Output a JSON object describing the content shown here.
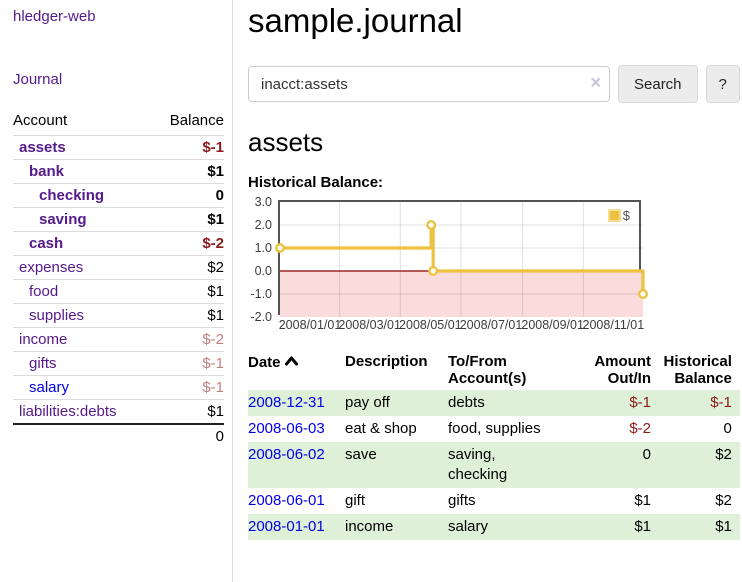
{
  "colors": {
    "link_purple": "#551a8b",
    "link_blue": "#0000e8",
    "neg_strong": "#8b1a1a",
    "neg_muted": "#bf8080",
    "row_green": "#dff0d8",
    "chart_line": "#edc240",
    "chart_marker_fill": "#ffffff",
    "chart_fill_negative": "#fbdcdc",
    "chart_zero_line": "#8b0000",
    "chart_border": "#545454"
  },
  "sidebar": {
    "app_title": "hledger-web",
    "journal_label": "Journal",
    "accounts": {
      "col_account": "Account",
      "col_balance": "Balance",
      "rows": [
        {
          "name": "assets",
          "depth": 1,
          "bold": true,
          "link": "purple",
          "balance": "$-1",
          "tone": "neg_strong"
        },
        {
          "name": "bank",
          "depth": 2,
          "bold": true,
          "link": "purple",
          "balance": "$1",
          "tone": "plain"
        },
        {
          "name": "checking",
          "depth": 3,
          "bold": true,
          "link": "purple",
          "balance": "0",
          "tone": "plain"
        },
        {
          "name": "saving",
          "depth": 3,
          "bold": true,
          "link": "purple",
          "balance": "$1",
          "tone": "plain"
        },
        {
          "name": "cash",
          "depth": 2,
          "bold": true,
          "link": "purple",
          "balance": "$-2",
          "tone": "neg_strong"
        },
        {
          "name": "expenses",
          "depth": 1,
          "bold": false,
          "link": "purple",
          "balance": "$2",
          "tone": "plain"
        },
        {
          "name": "food",
          "depth": 2,
          "bold": false,
          "link": "purple",
          "balance": "$1",
          "tone": "plain"
        },
        {
          "name": "supplies",
          "depth": 2,
          "bold": false,
          "link": "purple",
          "balance": "$1",
          "tone": "plain"
        },
        {
          "name": "income",
          "depth": 1,
          "bold": false,
          "link": "purple",
          "balance": "$-2",
          "tone": "neg_muted"
        },
        {
          "name": "gifts",
          "depth": 2,
          "bold": false,
          "link": "purple",
          "balance": "$-1",
          "tone": "neg_muted"
        },
        {
          "name": "salary",
          "depth": 2,
          "bold": false,
          "link": "blue",
          "balance": "$-1",
          "tone": "neg_muted"
        },
        {
          "name": "liabilities:debts",
          "depth": 1,
          "bold": false,
          "link": "purple",
          "balance": "$1",
          "tone": "plain"
        }
      ],
      "total": "0"
    }
  },
  "main": {
    "title": "sample.journal",
    "search": {
      "value": "inacct:assets",
      "clear_icon": "×",
      "button_label": "Search",
      "help_label": "?"
    },
    "account_heading": "assets",
    "chart_heading": "Historical Balance:"
  },
  "chart_data": {
    "type": "line",
    "step": true,
    "title": "Historical Balance",
    "x_range": [
      "2008-01-01",
      "2008-12-31"
    ],
    "ylim": [
      -2,
      3
    ],
    "grid": true,
    "legend_position": "top-right",
    "legend_label": "$",
    "y_ticks": [
      "3.0",
      "2.0",
      "1.0",
      "0.0",
      "-1.0",
      "-2.0"
    ],
    "x_ticks": [
      {
        "date": "2008-01-01",
        "label": "2008/01/01"
      },
      {
        "date": "2008-03-01",
        "label": "2008/03/01"
      },
      {
        "date": "2008-05-01",
        "label": "2008/05/01"
      },
      {
        "date": "2008-07-01",
        "label": "2008/07/01"
      },
      {
        "date": "2008-09-01",
        "label": "2008/09/01"
      },
      {
        "date": "2008-11-01",
        "label": "2008/11/01"
      }
    ],
    "series": [
      {
        "name": "$",
        "points": [
          {
            "date": "2008-01-01",
            "value": 1
          },
          {
            "date": "2008-06-01",
            "value": 2
          },
          {
            "date": "2008-06-03",
            "value": 0
          },
          {
            "date": "2008-12-31",
            "value": -1
          }
        ]
      }
    ]
  },
  "register": {
    "headers": {
      "date": "Date",
      "description": "Description",
      "accounts": "To/From Account(s)",
      "amount": "Amount Out/In",
      "balance": "Historical Balance"
    },
    "sort_icon": "chevron-up",
    "rows": [
      {
        "date": "2008-12-31",
        "description": "pay off",
        "accounts": "debts",
        "amount": "$-1",
        "balance": "$-1",
        "amount_tone": "neg_strong",
        "balance_tone": "neg_strong",
        "highlight": true
      },
      {
        "date": "2008-06-03",
        "description": "eat & shop",
        "accounts": "food, supplies",
        "amount": "$-2",
        "balance": "0",
        "amount_tone": "neg_strong",
        "balance_tone": "plain",
        "highlight": false
      },
      {
        "date": "2008-06-02",
        "description": "save",
        "accounts": "saving,\nchecking",
        "amount": "0",
        "balance": "$2",
        "amount_tone": "plain",
        "balance_tone": "plain",
        "highlight": true
      },
      {
        "date": "2008-06-01",
        "description": "gift",
        "accounts": "gifts",
        "amount": "$1",
        "balance": "$2",
        "amount_tone": "plain",
        "balance_tone": "plain",
        "highlight": false
      },
      {
        "date": "2008-01-01",
        "description": "income",
        "accounts": "salary",
        "amount": "$1",
        "balance": "$1",
        "amount_tone": "plain",
        "balance_tone": "plain",
        "highlight": true
      }
    ]
  }
}
